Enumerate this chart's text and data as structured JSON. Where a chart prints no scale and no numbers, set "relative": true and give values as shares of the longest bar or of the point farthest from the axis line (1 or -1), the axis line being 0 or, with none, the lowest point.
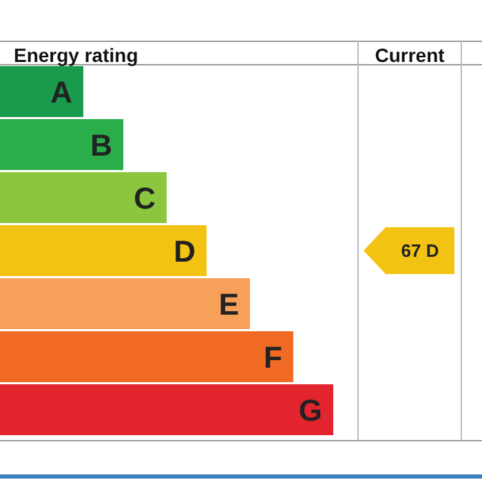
{
  "chart_data": {
    "type": "bar",
    "orientation": "horizontal",
    "relative": true,
    "title": "Energy rating",
    "categories": [
      "A",
      "B",
      "C",
      "D",
      "E",
      "F",
      "G"
    ],
    "values": [
      0.25,
      0.37,
      0.5,
      0.62,
      0.75,
      0.88,
      1
    ],
    "colors": [
      "#1a9a4c",
      "#2aae4a",
      "#8cc63e",
      "#f3c313",
      "#f6a05a",
      "#f06a24",
      "#e2242f"
    ],
    "annotations": [
      "Current",
      "67 D"
    ]
  }
}
